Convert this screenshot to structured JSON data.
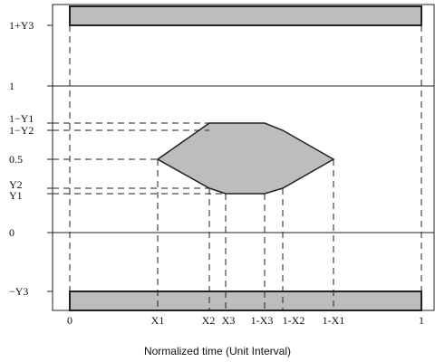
{
  "diagram": {
    "x_axis_label": "Normalized time (Unit Interval)",
    "y_labels": {
      "one_plus_y3": "1+Y3",
      "one": "1",
      "one_minus_y1": "1−Y1",
      "one_minus_y2": "1−Y2",
      "half": "0.5",
      "y2": "Y2",
      "y1": "Y1",
      "zero": "0",
      "minus_y3": "−Y3"
    },
    "x_labels": {
      "zero": "0",
      "x1": "X1",
      "x2": "X2",
      "x3": "X3",
      "one_minus_x3": "1-X3",
      "one_minus_x2": "1-X2",
      "one_minus_x1": "1-X1",
      "one": "1"
    },
    "colors": {
      "mask_fill": "#bdbdbd",
      "stroke": "#222222",
      "background": "#ffffff"
    }
  }
}
